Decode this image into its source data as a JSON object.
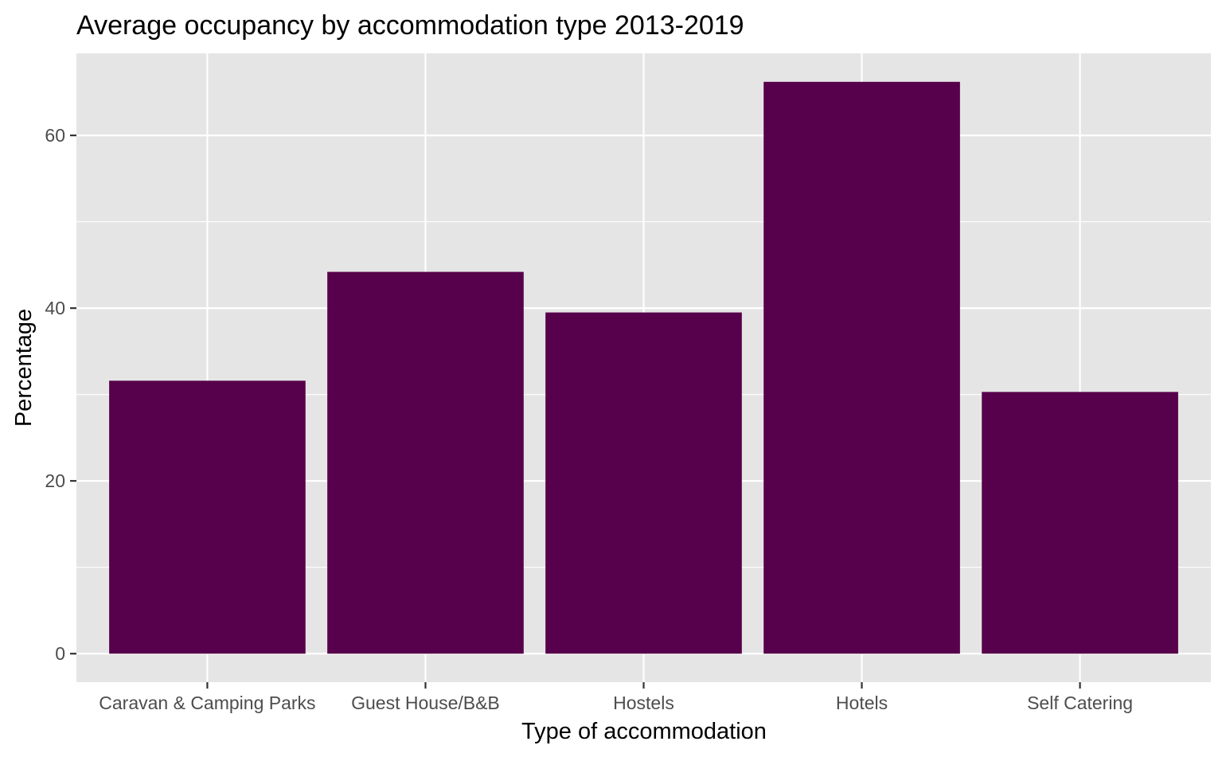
{
  "chart_data": {
    "type": "bar",
    "title": "Average occupancy by accommodation type 2013-2019",
    "xlabel": "Type of accommodation",
    "ylabel": "Percentage",
    "categories": [
      "Caravan & Camping Parks",
      "Guest House/B&B",
      "Hostels",
      "Hotels",
      "Self Catering"
    ],
    "values": [
      31.6,
      44.2,
      39.5,
      66.2,
      30.3
    ],
    "ylim": [
      -3.3,
      69.5
    ],
    "yticks": [
      0,
      20,
      40,
      60
    ],
    "ytick_labels": [
      "0",
      "20",
      "40",
      "60"
    ],
    "grid": true,
    "legend": "none",
    "colors": {
      "bar": "#57004b",
      "panel": "#e5e5e5",
      "grid": "#ffffff",
      "tick_text": "#4d4d4d",
      "tick_mark": "#333333"
    }
  }
}
